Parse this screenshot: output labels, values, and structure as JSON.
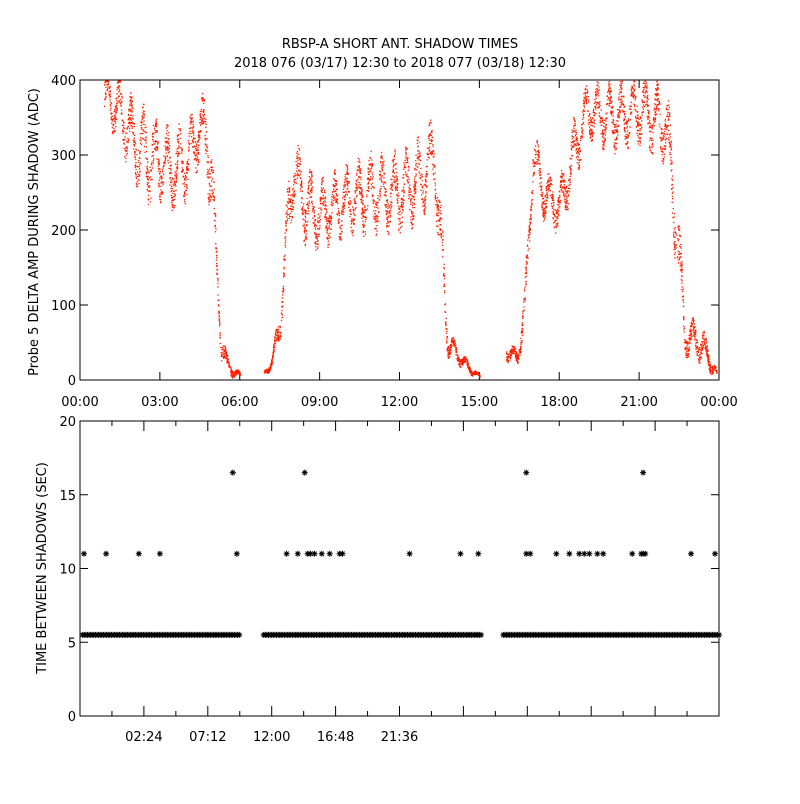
{
  "chart_data": [
    {
      "type": "scatter",
      "title": "RBSP-A SHORT ANT. SHADOW TIMES",
      "subtitle": "2018 076 (03/17) 12:30 to 2018 077 (03/18) 12:30",
      "ylabel": "Probe 5 DELTA AMP DURING SHADOW (ADC)",
      "xlabel": "",
      "xlim_hours": [
        0,
        24
      ],
      "ylim": [
        0,
        400
      ],
      "xticks": [
        "00:00",
        "03:00",
        "06:00",
        "09:00",
        "12:00",
        "15:00",
        "18:00",
        "21:00",
        "00:00"
      ],
      "yticks": [
        "0",
        "100",
        "200",
        "300",
        "400"
      ],
      "color": "#ff2000",
      "profile_note": "segments of [hour, center ADC, spread ADC]",
      "segments": [
        [
          [
            0.9,
            380,
            40
          ],
          [
            1.5,
            360,
            50
          ],
          [
            2.0,
            320,
            60
          ],
          [
            2.5,
            300,
            70
          ],
          [
            3.0,
            290,
            60
          ],
          [
            3.5,
            280,
            60
          ],
          [
            4.0,
            290,
            60
          ],
          [
            4.5,
            340,
            50
          ],
          [
            4.9,
            300,
            80
          ],
          [
            5.1,
            150,
            40
          ],
          [
            5.3,
            50,
            30
          ],
          [
            5.5,
            20,
            15
          ],
          [
            6.0,
            6,
            5
          ]
        ],
        [
          [
            6.9,
            10,
            5
          ],
          [
            7.2,
            25,
            10
          ],
          [
            7.5,
            80,
            30
          ],
          [
            7.8,
            220,
            60
          ],
          [
            8.0,
            280,
            50
          ],
          [
            8.5,
            230,
            60
          ],
          [
            9.0,
            220,
            50
          ],
          [
            10.0,
            240,
            50
          ],
          [
            11.0,
            250,
            60
          ],
          [
            12.0,
            250,
            60
          ],
          [
            12.8,
            270,
            60
          ],
          [
            13.3,
            300,
            60
          ],
          [
            13.6,
            150,
            60
          ],
          [
            13.8,
            50,
            20
          ],
          [
            14.5,
            20,
            10
          ],
          [
            15.0,
            4,
            4
          ]
        ],
        [
          [
            16.0,
            40,
            15
          ],
          [
            16.4,
            30,
            15
          ],
          [
            16.7,
            100,
            40
          ],
          [
            17.0,
            300,
            40
          ],
          [
            17.4,
            250,
            40
          ],
          [
            18.0,
            230,
            40
          ],
          [
            18.5,
            300,
            50
          ],
          [
            19.0,
            360,
            40
          ],
          [
            20.0,
            350,
            50
          ],
          [
            21.0,
            360,
            50
          ],
          [
            22.0,
            340,
            60
          ],
          [
            22.4,
            200,
            80
          ],
          [
            22.7,
            60,
            30
          ],
          [
            23.3,
            50,
            30
          ],
          [
            23.9,
            8,
            8
          ]
        ]
      ]
    },
    {
      "type": "scatter",
      "ylabel": "TIME BETWEEN SHADOWS (SEC)",
      "xlim_hours": [
        0,
        24
      ],
      "ylim": [
        0,
        20
      ],
      "xticks": [
        "02:24",
        "07:12",
        "12:00",
        "16:48",
        "21:36"
      ],
      "yticks": [
        "0",
        "5",
        "10",
        "15",
        "20"
      ],
      "marker": "*",
      "baseline_value": 5.5,
      "baseline_ranges_hours": [
        [
          0.1,
          6.0
        ],
        [
          6.9,
          15.1
        ],
        [
          15.9,
          24.0
        ]
      ],
      "points_11s_hours": [
        0.15,
        0.98,
        2.21,
        3.0,
        5.89,
        7.76,
        8.18,
        8.55,
        8.66,
        8.81,
        9.08,
        9.38,
        9.75,
        9.86,
        12.38,
        14.29,
        14.96,
        16.76,
        16.91,
        17.89,
        18.38,
        18.75,
        18.94,
        19.13,
        19.43,
        19.65,
        20.74,
        21.08,
        21.15,
        21.23,
        22.95,
        23.85
      ],
      "points_16_5s_hours": [
        5.74,
        8.44,
        16.76,
        21.15
      ]
    }
  ]
}
